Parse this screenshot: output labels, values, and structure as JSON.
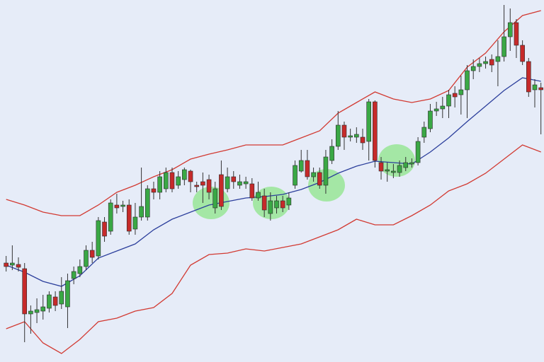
{
  "chart_data": {
    "type": "candlestick",
    "xlim": [
      -1,
      87.5
    ],
    "ylim": [
      0,
      512
    ],
    "up_color": "#3aa845",
    "down_color": "#c62a2a",
    "open": [
      140,
      137,
      138,
      132,
      68,
      70,
      72,
      76,
      92,
      82,
      78,
      118,
      125,
      135,
      158,
      150,
      198,
      185,
      222,
      220,
      222,
      188,
      205,
      205,
      245,
      240,
      245,
      268,
      250,
      258,
      270,
      250,
      255,
      258,
      218,
      265,
      245,
      262,
      250,
      252,
      252,
      232,
      235,
      210,
      218,
      228,
      222,
      250,
      270,
      285,
      262,
      268,
      250,
      285,
      305,
      335,
      318,
      318,
      318,
      312,
      368,
      282,
      270,
      268,
      268,
      275,
      280,
      282,
      318,
      330,
      355,
      358,
      362,
      380,
      378,
      385,
      412,
      418,
      422,
      428,
      425,
      432,
      460,
      480,
      448,
      425,
      385,
      388
    ],
    "high": [
      150,
      165,
      148,
      140,
      80,
      90,
      95,
      100,
      100,
      120,
      125,
      135,
      145,
      165,
      170,
      205,
      205,
      230,
      238,
      228,
      230,
      225,
      275,
      250,
      255,
      270,
      275,
      275,
      270,
      275,
      272,
      255,
      268,
      265,
      255,
      285,
      275,
      270,
      265,
      262,
      260,
      255,
      245,
      240,
      235,
      235,
      240,
      285,
      300,
      300,
      275,
      275,
      300,
      315,
      355,
      340,
      330,
      332,
      330,
      372,
      370,
      290,
      282,
      280,
      285,
      290,
      288,
      318,
      340,
      365,
      368,
      375,
      385,
      390,
      405,
      420,
      428,
      430,
      432,
      435,
      455,
      505,
      500,
      485,
      455,
      430,
      400,
      395
    ],
    "low": [
      128,
      130,
      128,
      28,
      40,
      55,
      60,
      70,
      72,
      75,
      48,
      110,
      120,
      130,
      140,
      145,
      170,
      180,
      210,
      212,
      180,
      180,
      200,
      200,
      230,
      230,
      240,
      240,
      245,
      250,
      240,
      240,
      225,
      230,
      210,
      215,
      240,
      245,
      245,
      245,
      228,
      228,
      205,
      200,
      210,
      212,
      215,
      245,
      268,
      258,
      255,
      245,
      238,
      280,
      300,
      300,
      312,
      310,
      300,
      285,
      275,
      258,
      255,
      260,
      262,
      270,
      275,
      278,
      310,
      325,
      348,
      345,
      345,
      360,
      350,
      345,
      400,
      410,
      415,
      410,
      390,
      425,
      440,
      430,
      420,
      375,
      360,
      322
    ],
    "close": [
      135,
      140,
      134,
      68,
      72,
      74,
      78,
      95,
      80,
      100,
      115,
      128,
      135,
      158,
      148,
      200,
      178,
      225,
      218,
      222,
      185,
      205,
      220,
      245,
      240,
      262,
      268,
      245,
      262,
      272,
      255,
      248,
      250,
      240,
      245,
      220,
      262,
      255,
      255,
      255,
      232,
      240,
      215,
      228,
      228,
      218,
      232,
      278,
      285,
      262,
      268,
      250,
      290,
      305,
      335,
      318,
      320,
      322,
      310,
      368,
      285,
      270,
      272,
      270,
      278,
      282,
      282,
      312,
      332,
      355,
      358,
      362,
      378,
      375,
      385,
      412,
      418,
      422,
      425,
      420,
      432,
      460,
      480,
      448,
      425,
      382,
      392,
      385
    ],
    "lines": [
      {
        "color": "#d23a32",
        "x": [
          0,
          3,
          6,
          9,
          12,
          15,
          18,
          21,
          24,
          27,
          30,
          33,
          36,
          39,
          42,
          45,
          48,
          51,
          54,
          57,
          60,
          63,
          66,
          69,
          72,
          75,
          78,
          81,
          84,
          87
        ],
        "values": [
          230,
          222,
          212,
          207,
          207,
          222,
          240,
          250,
          262,
          272,
          287,
          294,
          300,
          307,
          307,
          307,
          317,
          327,
          352,
          367,
          382,
          372,
          367,
          372,
          384,
          417,
          437,
          467,
          490,
          497
        ]
      },
      {
        "color": "#2c3f9c",
        "x": [
          0,
          3,
          6,
          9,
          12,
          15,
          18,
          21,
          24,
          27,
          30,
          33,
          36,
          39,
          42,
          45,
          48,
          51,
          54,
          57,
          60,
          63,
          66,
          69,
          72,
          75,
          78,
          81,
          84,
          87
        ],
        "values": [
          137,
          127,
          114,
          107,
          122,
          147,
          157,
          167,
          187,
          202,
          212,
          222,
          227,
          232,
          234,
          237,
          244,
          254,
          267,
          277,
          284,
          282,
          280,
          297,
          317,
          340,
          362,
          384,
          402,
          397
        ]
      },
      {
        "color": "#d23a32",
        "x": [
          0,
          3,
          6,
          9,
          12,
          15,
          18,
          21,
          24,
          27,
          30,
          33,
          36,
          39,
          42,
          45,
          48,
          51,
          54,
          57,
          60,
          63,
          66,
          69,
          72,
          75,
          78,
          81,
          84,
          87
        ],
        "values": [
          47,
          57,
          27,
          12,
          32,
          57,
          62,
          72,
          77,
          97,
          137,
          152,
          154,
          160,
          157,
          162,
          167,
          177,
          187,
          202,
          194,
          194,
          207,
          222,
          242,
          252,
          267,
          287,
          307,
          297
        ]
      }
    ]
  }
}
